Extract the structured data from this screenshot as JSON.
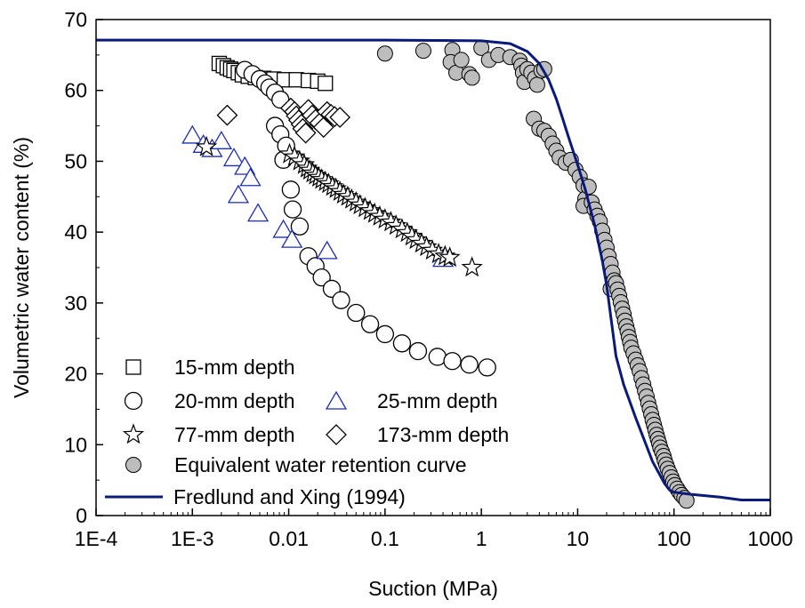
{
  "chart_data": {
    "type": "scatter",
    "xlabel": "Suction (MPa)",
    "ylabel": "Volumetric water content (%)",
    "x_scale": "log",
    "xlim": [
      0.0001,
      1000
    ],
    "ylim": [
      0,
      70
    ],
    "x_ticks": [
      {
        "value": 0.0001,
        "label": "1E-4"
      },
      {
        "value": 0.001,
        "label": "1E-3"
      },
      {
        "value": 0.01,
        "label": "0.01"
      },
      {
        "value": 0.1,
        "label": "0.1"
      },
      {
        "value": 1,
        "label": "1"
      },
      {
        "value": 10,
        "label": "10"
      },
      {
        "value": 100,
        "label": "100"
      },
      {
        "value": 1000,
        "label": "1000"
      }
    ],
    "y_ticks": [
      0,
      10,
      20,
      30,
      40,
      50,
      60,
      70
    ],
    "grid": false,
    "legend_placement": "bottom-left",
    "series": [
      {
        "name": "15-mm depth",
        "marker": "square",
        "color": "#000000",
        "points": [
          [
            0.0019,
            63.8
          ],
          [
            0.0021,
            63.5
          ],
          [
            0.0023,
            63.2
          ],
          [
            0.0025,
            63.0
          ],
          [
            0.0027,
            62.8
          ],
          [
            0.003,
            62.5
          ],
          [
            0.0033,
            62.2
          ],
          [
            0.0038,
            62.0
          ],
          [
            0.0045,
            61.8
          ],
          [
            0.0055,
            61.7
          ],
          [
            0.007,
            61.6
          ],
          [
            0.009,
            61.5
          ],
          [
            0.012,
            61.5
          ],
          [
            0.016,
            61.4
          ],
          [
            0.02,
            61.3
          ],
          [
            0.024,
            61.0
          ]
        ]
      },
      {
        "name": "20-mm depth",
        "marker": "circle",
        "color": "#000000",
        "points": [
          [
            0.0035,
            62.9
          ],
          [
            0.0042,
            62.3
          ],
          [
            0.005,
            61.6
          ],
          [
            0.0057,
            61.0
          ],
          [
            0.0063,
            60.4
          ],
          [
            0.0072,
            59.7
          ],
          [
            0.0082,
            58.7
          ],
          [
            0.0072,
            55.0
          ],
          [
            0.0082,
            53.8
          ],
          [
            0.0094,
            52.2
          ],
          [
            0.0088,
            50.2
          ],
          [
            0.0105,
            46.0
          ],
          [
            0.011,
            43.2
          ],
          [
            0.013,
            40.8
          ],
          [
            0.016,
            36.6
          ],
          [
            0.019,
            35.2
          ],
          [
            0.022,
            33.6
          ],
          [
            0.028,
            32.0
          ],
          [
            0.035,
            30.4
          ],
          [
            0.05,
            28.6
          ],
          [
            0.07,
            27.0
          ],
          [
            0.1,
            25.6
          ],
          [
            0.15,
            24.3
          ],
          [
            0.22,
            23.2
          ],
          [
            0.35,
            22.4
          ],
          [
            0.5,
            21.8
          ],
          [
            0.75,
            21.3
          ],
          [
            1.15,
            20.9
          ]
        ]
      },
      {
        "name": "25-mm depth",
        "marker": "triangle",
        "color": "#1f2fb2",
        "points": [
          [
            0.001,
            53.7
          ],
          [
            0.0013,
            52.4
          ],
          [
            0.0016,
            51.8
          ],
          [
            0.002,
            52.9
          ],
          [
            0.0027,
            50.5
          ],
          [
            0.0035,
            49.3
          ],
          [
            0.004,
            47.7
          ],
          [
            0.003,
            45.3
          ],
          [
            0.0048,
            42.7
          ],
          [
            0.0088,
            40.4
          ],
          [
            0.0108,
            39.0
          ],
          [
            0.025,
            37.4
          ],
          [
            0.4,
            36.3
          ]
        ]
      },
      {
        "name": "77-mm depth",
        "marker": "star",
        "color": "#000000",
        "points": [
          [
            0.0014,
            52.0
          ],
          [
            0.0102,
            51.0
          ],
          [
            0.0115,
            50.6
          ],
          [
            0.013,
            50.0
          ],
          [
            0.0145,
            49.5
          ],
          [
            0.0155,
            49.0
          ],
          [
            0.0165,
            48.7
          ],
          [
            0.0178,
            48.3
          ],
          [
            0.019,
            48.0
          ],
          [
            0.0205,
            47.7
          ],
          [
            0.022,
            47.4
          ],
          [
            0.024,
            47.1
          ],
          [
            0.026,
            46.8
          ],
          [
            0.0285,
            46.4
          ],
          [
            0.031,
            46.1
          ],
          [
            0.034,
            45.7
          ],
          [
            0.037,
            45.3
          ],
          [
            0.041,
            45.0
          ],
          [
            0.045,
            44.6
          ],
          [
            0.05,
            44.2
          ],
          [
            0.055,
            43.8
          ],
          [
            0.062,
            43.4
          ],
          [
            0.07,
            43.0
          ],
          [
            0.078,
            42.6
          ],
          [
            0.088,
            42.2
          ],
          [
            0.1,
            41.8
          ],
          [
            0.115,
            41.4
          ],
          [
            0.13,
            40.9
          ],
          [
            0.15,
            40.4
          ],
          [
            0.17,
            39.9
          ],
          [
            0.19,
            39.4
          ],
          [
            0.21,
            38.9
          ],
          [
            0.24,
            38.4
          ],
          [
            0.27,
            37.9
          ],
          [
            0.31,
            37.4
          ],
          [
            0.36,
            36.9
          ],
          [
            0.42,
            36.6
          ],
          [
            0.47,
            36.4
          ],
          [
            0.8,
            35.0
          ]
        ]
      },
      {
        "name": "173-mm depth",
        "marker": "diamond",
        "color": "#000000",
        "points": [
          [
            0.0023,
            56.5
          ],
          [
            0.0105,
            57.5
          ],
          [
            0.0115,
            57.0
          ],
          [
            0.012,
            56.4
          ],
          [
            0.0127,
            55.8
          ],
          [
            0.0135,
            55.2
          ],
          [
            0.014,
            54.6
          ],
          [
            0.015,
            54.0
          ],
          [
            0.016,
            57.3
          ],
          [
            0.0175,
            56.5
          ],
          [
            0.019,
            55.9
          ],
          [
            0.021,
            55.4
          ],
          [
            0.023,
            54.8
          ],
          [
            0.025,
            57.0
          ],
          [
            0.0275,
            56.6
          ],
          [
            0.03,
            56.3
          ],
          [
            0.034,
            56.2
          ]
        ]
      },
      {
        "name": "Equivalent water retention curve",
        "marker": "filled-circle",
        "color": "#bdbdbd",
        "points": [
          [
            0.1,
            65.2
          ],
          [
            0.25,
            65.6
          ],
          [
            0.5,
            65.7
          ],
          [
            0.48,
            64.0
          ],
          [
            0.55,
            62.5
          ],
          [
            0.62,
            64.3
          ],
          [
            0.75,
            62.3
          ],
          [
            0.8,
            61.8
          ],
          [
            1.0,
            66.0
          ],
          [
            1.2,
            64.3
          ],
          [
            1.5,
            65.0
          ],
          [
            2.0,
            64.7
          ],
          [
            2.5,
            64.2
          ],
          [
            2.6,
            63.5
          ],
          [
            2.7,
            62.5
          ],
          [
            2.8,
            61.2
          ],
          [
            3.0,
            63.0
          ],
          [
            3.3,
            62.5
          ],
          [
            3.6,
            61.7
          ],
          [
            3.8,
            60.8
          ],
          [
            4.2,
            62.8
          ],
          [
            4.5,
            63.0
          ],
          [
            3.5,
            56.0
          ],
          [
            4.0,
            54.6
          ],
          [
            4.5,
            54.3
          ],
          [
            5.0,
            53.6
          ],
          [
            5.5,
            52.5
          ],
          [
            6.0,
            51.5
          ],
          [
            6.5,
            50.5
          ],
          [
            7.5,
            49.8
          ],
          [
            8.5,
            50.2
          ],
          [
            9.5,
            48.8
          ],
          [
            10.5,
            47.8
          ],
          [
            11.5,
            46.6
          ],
          [
            12.0,
            44.7
          ],
          [
            11.5,
            43.7
          ],
          [
            13.0,
            46.4
          ],
          [
            14.0,
            44.2
          ],
          [
            15.0,
            43.2
          ],
          [
            16.0,
            42.3
          ],
          [
            17.0,
            41.5
          ],
          [
            18.0,
            40.2
          ],
          [
            19.0,
            38.9
          ],
          [
            20.0,
            37.8
          ],
          [
            21.0,
            36.6
          ],
          [
            22.0,
            35.5
          ],
          [
            23.0,
            34.3
          ],
          [
            24.0,
            33.2
          ],
          [
            22.0,
            32.0
          ],
          [
            25.0,
            32.8
          ],
          [
            26.0,
            31.9
          ],
          [
            27.0,
            31.0
          ],
          [
            28.0,
            30.1
          ],
          [
            29.0,
            29.2
          ],
          [
            30.0,
            28.4
          ],
          [
            31.0,
            27.5
          ],
          [
            32.0,
            26.7
          ],
          [
            33.0,
            26.0
          ],
          [
            34.0,
            25.2
          ],
          [
            35.0,
            24.5
          ],
          [
            36.0,
            23.7
          ],
          [
            38.0,
            22.9
          ],
          [
            40.0,
            22.0
          ],
          [
            42.0,
            21.2
          ],
          [
            44.0,
            20.4
          ],
          [
            46.0,
            19.4
          ],
          [
            48.0,
            18.5
          ],
          [
            50.0,
            17.6
          ],
          [
            52.0,
            16.8
          ],
          [
            54.0,
            15.9
          ],
          [
            56.0,
            15.1
          ],
          [
            58.0,
            14.3
          ],
          [
            60.0,
            13.5
          ],
          [
            62.0,
            12.8
          ],
          [
            64.0,
            12.1
          ],
          [
            66.0,
            11.4
          ],
          [
            68.0,
            10.8
          ],
          [
            70.0,
            10.2
          ],
          [
            72.0,
            9.6
          ],
          [
            75.0,
            9.0
          ],
          [
            78.0,
            8.4
          ],
          [
            80.0,
            7.8
          ],
          [
            83.0,
            7.2
          ],
          [
            86.0,
            6.6
          ],
          [
            90.0,
            6.0
          ],
          [
            94.0,
            5.4
          ],
          [
            98.0,
            4.8
          ],
          [
            102.0,
            4.3
          ],
          [
            108.0,
            3.8
          ],
          [
            114.0,
            3.3
          ],
          [
            120.0,
            2.9
          ],
          [
            128.0,
            2.5
          ],
          [
            135.0,
            2.1
          ]
        ]
      },
      {
        "name": "Fredlund and Xing (1994)",
        "marker": "line",
        "color": "#0a1a7a",
        "points": [
          [
            0.0001,
            67.1
          ],
          [
            0.01,
            67.1
          ],
          [
            0.1,
            67.1
          ],
          [
            1.0,
            67.0
          ],
          [
            2.0,
            66.6
          ],
          [
            3.0,
            65.5
          ],
          [
            4.0,
            63.8
          ],
          [
            5.0,
            61.5
          ],
          [
            6.0,
            58.8
          ],
          [
            7.0,
            56.0
          ],
          [
            8.0,
            53.5
          ],
          [
            10.0,
            49.5
          ],
          [
            12.0,
            46.0
          ],
          [
            15.0,
            41.0
          ],
          [
            18.0,
            36.0
          ],
          [
            20.0,
            32.5
          ],
          [
            25.0,
            22.5
          ],
          [
            30.0,
            18.5
          ],
          [
            40.0,
            13.8
          ],
          [
            60.0,
            7.6
          ],
          [
            80.0,
            4.5
          ],
          [
            90.0,
            3.6
          ],
          [
            100.0,
            3.3
          ],
          [
            150.0,
            3.0
          ],
          [
            300.0,
            2.6
          ],
          [
            500.0,
            2.2
          ],
          [
            1000.0,
            2.2
          ]
        ]
      }
    ]
  }
}
